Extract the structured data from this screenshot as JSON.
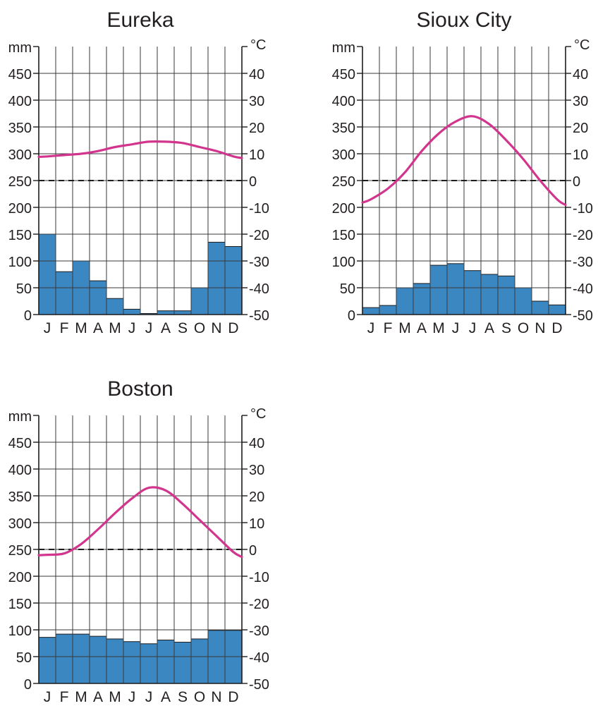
{
  "months": [
    "J",
    "F",
    "M",
    "A",
    "M",
    "J",
    "J",
    "A",
    "S",
    "O",
    "N",
    "D"
  ],
  "left_axis": {
    "unit": "mm",
    "ticks": [
      0,
      50,
      100,
      150,
      200,
      250,
      300,
      350,
      400,
      450
    ]
  },
  "right_axis": {
    "unit": "°C",
    "ticks": [
      -50,
      -40,
      -30,
      -20,
      -10,
      0,
      10,
      20,
      30,
      40
    ]
  },
  "colors": {
    "bars": "#3a87c2",
    "bar_edge": "#1c1c1c",
    "line": "#d2358d",
    "grid": "#3a3a3a"
  },
  "chart_data": [
    {
      "type": "bar",
      "title": "Eureka",
      "categories": [
        "J",
        "F",
        "M",
        "A",
        "M",
        "J",
        "J",
        "A",
        "S",
        "O",
        "N",
        "D"
      ],
      "series": [
        {
          "values": [
            150,
            80,
            100,
            63,
            30,
            10,
            2,
            7,
            7,
            50,
            135,
            127
          ]
        },
        {
          "type": "line",
          "axis": "right",
          "values": [
            9,
            9.5,
            10,
            11,
            12.5,
            13.5,
            14.5,
            14.5,
            14,
            12.5,
            11,
            9
          ]
        }
      ],
      "ylim": [
        0,
        500
      ],
      "y2lim": [
        -50,
        50
      ]
    },
    {
      "type": "bar",
      "title": "Sioux City",
      "categories": [
        "J",
        "F",
        "M",
        "A",
        "M",
        "J",
        "J",
        "A",
        "S",
        "O",
        "N",
        "D"
      ],
      "series": [
        {
          "values": [
            13,
            17,
            50,
            58,
            92,
            95,
            82,
            75,
            72,
            50,
            25,
            18
          ]
        },
        {
          "type": "line",
          "axis": "right",
          "values": [
            -7,
            -3,
            3,
            11,
            17.5,
            22,
            24,
            21,
            15,
            8,
            0,
            -7
          ]
        }
      ],
      "ylim": [
        0,
        500
      ],
      "y2lim": [
        -50,
        50
      ]
    },
    {
      "type": "bar",
      "title": "Boston",
      "categories": [
        "J",
        "F",
        "M",
        "A",
        "M",
        "J",
        "J",
        "A",
        "S",
        "O",
        "N",
        "D"
      ],
      "series": [
        {
          "values": [
            86,
            92,
            92,
            88,
            83,
            78,
            74,
            81,
            77,
            83,
            99,
            99
          ]
        },
        {
          "type": "line",
          "axis": "right",
          "values": [
            -2,
            -1.5,
            2,
            7.5,
            13.5,
            19,
            23,
            22,
            17,
            11,
            5,
            -1
          ]
        }
      ],
      "ylim": [
        0,
        500
      ],
      "y2lim": [
        -50,
        50
      ]
    }
  ]
}
